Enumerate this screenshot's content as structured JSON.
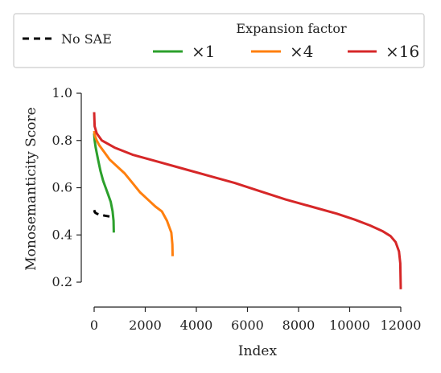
{
  "chart_data": {
    "type": "line",
    "xlabel": "Index",
    "ylabel": "Monosemanticity Score",
    "xlim": [
      0,
      12000
    ],
    "ylim": [
      0.2,
      1.0
    ],
    "x_ticks": [
      "0",
      "2000",
      "4000",
      "6000",
      "8000",
      "10000",
      "12000"
    ],
    "y_ticks": [
      "0.2",
      "0.4",
      "0.6",
      "0.8",
      "1.0"
    ],
    "grid": false,
    "legend": {
      "placement": "top",
      "title": "Expansion factor",
      "entries": [
        {
          "label": "No SAE",
          "color": "#000000",
          "style": "dashed"
        },
        {
          "label": "×1",
          "color": "#2ca02c",
          "style": "solid"
        },
        {
          "label": "×4",
          "color": "#ff7f0e",
          "style": "solid"
        },
        {
          "label": "×16",
          "color": "#d62728",
          "style": "solid"
        }
      ]
    },
    "series": [
      {
        "name": "No SAE",
        "color": "#000000",
        "style": "dashed",
        "points": [
          [
            0,
            0.505
          ],
          [
            30,
            0.495
          ],
          [
            100,
            0.49
          ],
          [
            200,
            0.487
          ],
          [
            400,
            0.482
          ],
          [
            600,
            0.478
          ],
          [
            768,
            0.475
          ]
        ]
      },
      {
        "name": "×1",
        "color": "#2ca02c",
        "style": "solid",
        "points": [
          [
            0,
            0.83
          ],
          [
            20,
            0.8
          ],
          [
            60,
            0.77
          ],
          [
            150,
            0.72
          ],
          [
            250,
            0.67
          ],
          [
            350,
            0.63
          ],
          [
            450,
            0.6
          ],
          [
            550,
            0.57
          ],
          [
            650,
            0.54
          ],
          [
            720,
            0.5
          ],
          [
            760,
            0.46
          ],
          [
            768,
            0.41
          ]
        ]
      },
      {
        "name": "×4",
        "color": "#ff7f0e",
        "style": "solid",
        "points": [
          [
            0,
            0.84
          ],
          [
            30,
            0.82
          ],
          [
            100,
            0.8
          ],
          [
            200,
            0.78
          ],
          [
            400,
            0.75
          ],
          [
            600,
            0.72
          ],
          [
            900,
            0.69
          ],
          [
            1200,
            0.66
          ],
          [
            1500,
            0.62
          ],
          [
            1800,
            0.58
          ],
          [
            2100,
            0.55
          ],
          [
            2400,
            0.52
          ],
          [
            2650,
            0.5
          ],
          [
            2850,
            0.46
          ],
          [
            2950,
            0.43
          ],
          [
            3020,
            0.41
          ],
          [
            3060,
            0.36
          ],
          [
            3072,
            0.31
          ]
        ]
      },
      {
        "name": "×16",
        "color": "#d62728",
        "style": "solid",
        "points": [
          [
            0,
            0.92
          ],
          [
            20,
            0.86
          ],
          [
            100,
            0.83
          ],
          [
            300,
            0.8
          ],
          [
            800,
            0.77
          ],
          [
            1500,
            0.74
          ],
          [
            2500,
            0.71
          ],
          [
            3500,
            0.68
          ],
          [
            4500,
            0.65
          ],
          [
            5500,
            0.62
          ],
          [
            6500,
            0.585
          ],
          [
            7500,
            0.55
          ],
          [
            8500,
            0.52
          ],
          [
            9500,
            0.49
          ],
          [
            10200,
            0.465
          ],
          [
            10800,
            0.44
          ],
          [
            11300,
            0.415
          ],
          [
            11600,
            0.395
          ],
          [
            11800,
            0.37
          ],
          [
            11930,
            0.33
          ],
          [
            11980,
            0.28
          ],
          [
            12000,
            0.17
          ]
        ]
      }
    ]
  }
}
